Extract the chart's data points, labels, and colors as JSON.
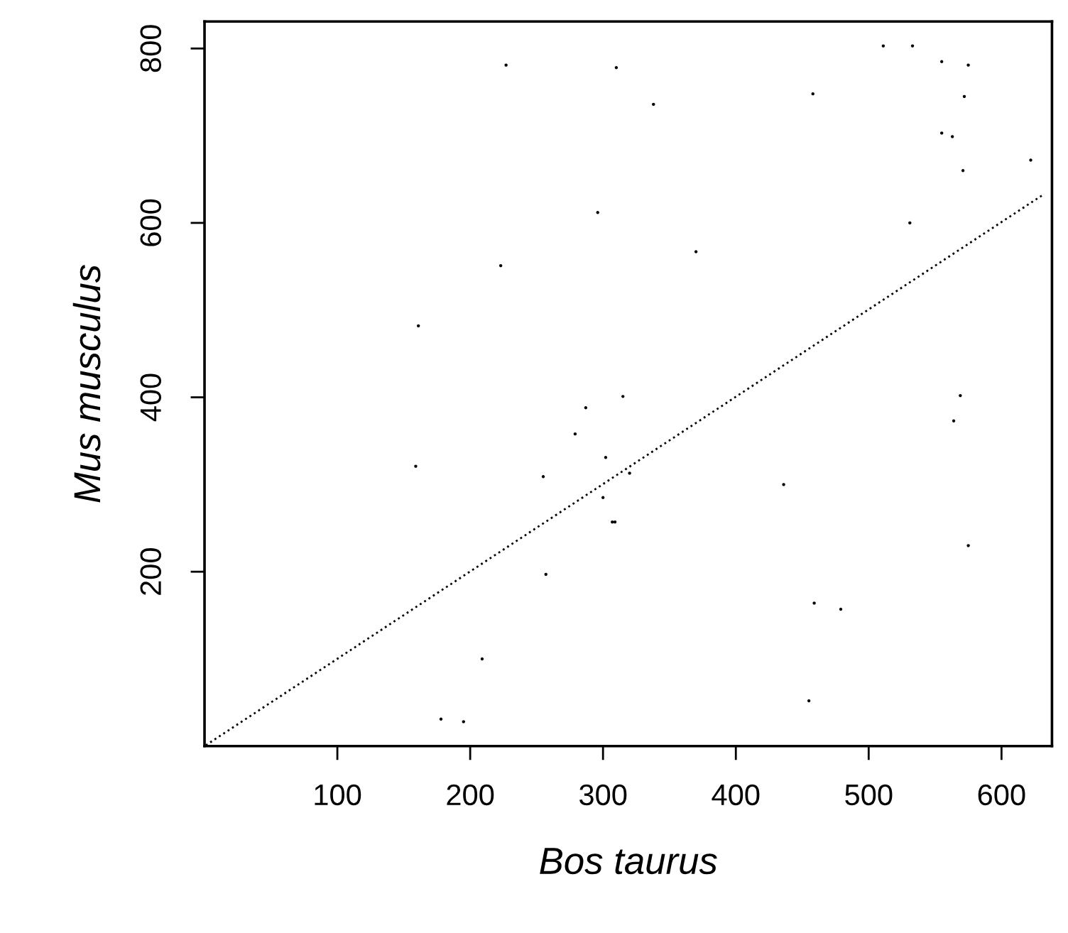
{
  "chart_data": {
    "type": "scatter",
    "xlabel": "Bos taurus",
    "ylabel": "Mus musculus",
    "xlim": [
      0,
      638
    ],
    "ylim": [
      0,
      831
    ],
    "xticks": [
      100,
      200,
      300,
      400,
      500,
      600
    ],
    "yticks": [
      200,
      400,
      600,
      800
    ],
    "grid": false,
    "legend": false,
    "series": [
      {
        "marker": "circle",
        "color": "#000000",
        "x": [
          227,
          310,
          296,
          223,
          161,
          315,
          338,
          511,
          533,
          555,
          575,
          458,
          572,
          555,
          563,
          622,
          571,
          531,
          370,
          569,
          159,
          279,
          287,
          255,
          302,
          320,
          300,
          307,
          309,
          257,
          209,
          178,
          195,
          564,
          575,
          436,
          459,
          479,
          455
        ],
        "values": [
          781,
          778,
          612,
          551,
          482,
          401,
          736,
          803,
          803,
          785,
          781,
          748,
          745,
          703,
          699,
          672,
          660,
          600,
          567,
          402,
          321,
          358,
          388,
          309,
          331,
          313,
          285,
          257,
          257,
          197,
          100,
          31,
          28,
          373,
          230,
          300,
          164,
          157,
          52
        ]
      },
      {
        "type": "line",
        "color": "#000000",
        "line_style": "dotted",
        "marker": "none",
        "x": [
          1,
          632
        ],
        "values": [
          1,
          633
        ]
      }
    ]
  }
}
